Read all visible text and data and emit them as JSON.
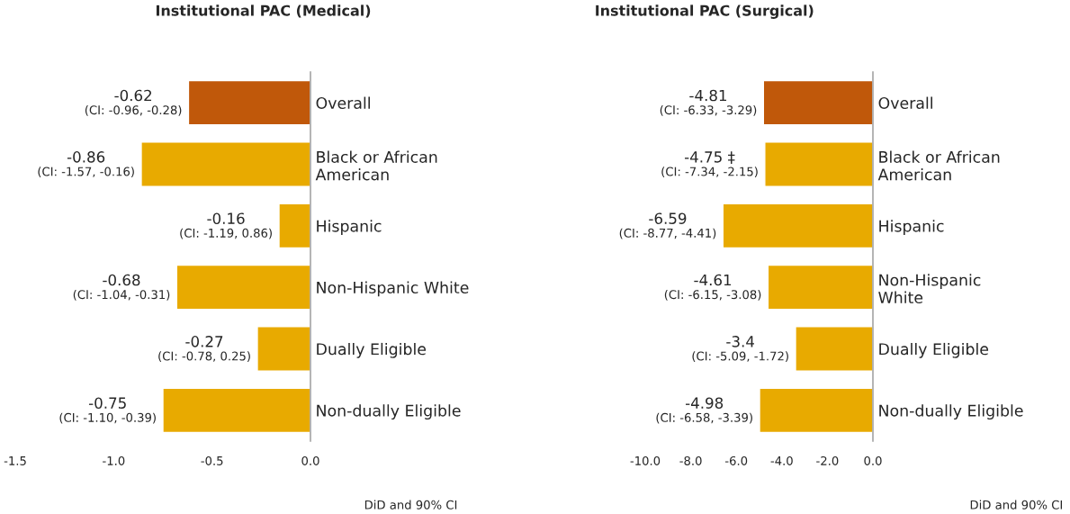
{
  "chart_data": [
    {
      "type": "bar",
      "orientation": "horizontal",
      "title": "Institutional PAC (Medical)",
      "xlabel": "DiD and 90% CI",
      "categories": [
        "Overall",
        "Black or African\nAmerican",
        "Hispanic",
        "Non-Hispanic White",
        "Dually Eligible",
        "Non-dually Eligible"
      ],
      "values": [
        -0.62,
        -0.86,
        -0.16,
        -0.68,
        -0.27,
        -0.75
      ],
      "colors": [
        "#c0580a",
        "#e8aa00",
        "#e8aa00",
        "#e8aa00",
        "#e8aa00",
        "#e8aa00"
      ],
      "value_labels": [
        "-0.62\n(CI: -0.96, -0.28)",
        "-0.86\n(CI: -1.57, -0.16)",
        "-0.16\n(CI: -1.19, 0.86)",
        "-0.68\n(CI: -1.04, -0.31)",
        "-0.27\n(CI: -0.78, 0.25)",
        "-0.75\n(CI: -1.10, -0.39)"
      ],
      "xlim": [
        -1.5,
        0
      ],
      "xticks": [
        -1.5,
        {
          "value": -1,
          "label": "-1.0"
        },
        -0.5,
        {
          "value": 0,
          "label": "0.0"
        }
      ],
      "grid": false,
      "legend": false
    },
    {
      "type": "bar",
      "orientation": "horizontal",
      "title": "Institutional PAC (Surgical)",
      "xlabel": "DiD and 90% CI",
      "categories": [
        "Overall",
        "Black or African\nAmerican",
        "Hispanic",
        "Non-Hispanic\nWhite",
        "Dually Eligible",
        "Non-dually Eligible"
      ],
      "values": [
        -4.81,
        -4.75,
        -6.59,
        -4.61,
        -3.4,
        -4.98
      ],
      "colors": [
        "#c0580a",
        "#e8aa00",
        "#e8aa00",
        "#e8aa00",
        "#e8aa00",
        "#e8aa00"
      ],
      "value_labels": [
        "-4.81\n(CI: -6.33, -3.29)",
        "-4.75 ‡\n(CI: -7.34, -2.15)",
        "-6.59\n(CI: -8.77, -4.41)",
        "-4.61\n(CI: -6.15, -3.08)",
        "-3.4\n(CI: -5.09, -1.72)",
        "-4.98\n(CI: -6.58, -3.39)"
      ],
      "xlim": [
        -10,
        0
      ],
      "xticks": [
        {
          "value": -10,
          "label": "-10.0"
        },
        {
          "value": -8,
          "label": "-8.0"
        },
        {
          "value": -6,
          "label": "-6.0"
        },
        {
          "value": -4,
          "label": "-4.0"
        },
        {
          "value": -2,
          "label": "-2.0"
        },
        {
          "value": 0,
          "label": "0.0"
        }
      ],
      "grid": false,
      "legend": false
    }
  ]
}
